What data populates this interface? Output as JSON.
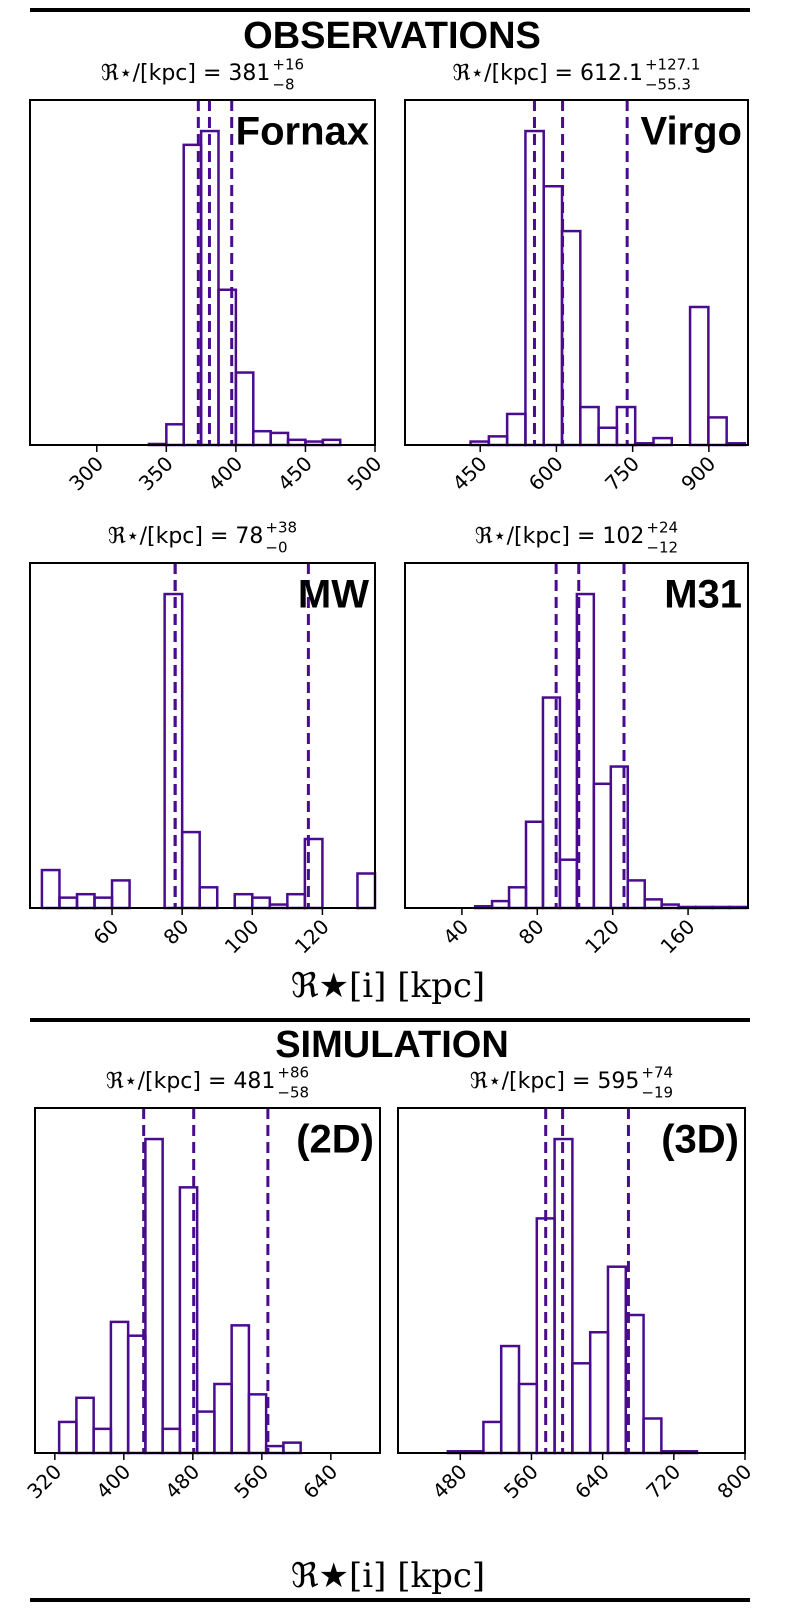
{
  "sections": [
    {
      "title": "OBSERVATIONS"
    },
    {
      "title": "SIMULATION"
    }
  ],
  "xlabel": "ℜ★[i]  [kpc]",
  "chart_data": [
    {
      "type": "histogram",
      "label": "Fornax",
      "annotation": {
        "prefix": "ℜ⋆/[kpc] = ",
        "median": "381",
        "plus": "+16",
        "minus": "−8"
      },
      "bins": [
        250,
        262.5,
        275,
        287.5,
        300,
        312.5,
        325,
        337.5,
        350,
        362.5,
        375,
        387.5,
        400,
        412.5,
        425,
        437.5,
        450,
        462.5,
        475,
        487.5,
        500
      ],
      "counts": [
        0,
        0,
        0,
        0,
        0,
        0,
        0,
        0.3,
        6,
        87,
        91,
        45,
        21,
        4,
        3.5,
        1.5,
        1,
        1.5,
        0,
        0
      ],
      "xlim": [
        252,
        500
      ],
      "xticks": [
        300,
        350,
        400,
        450,
        500
      ],
      "ylim": [
        0,
        100
      ],
      "vlines": [
        373,
        381,
        397
      ],
      "color": "#4a0c8f"
    },
    {
      "type": "histogram",
      "label": "Virgo",
      "annotation": {
        "prefix": "ℜ⋆/[kpc] = ",
        "median": "612.1",
        "plus": "+127.1",
        "minus": "−55.3"
      },
      "bins": [
        431,
        467,
        503,
        539,
        575,
        611,
        647,
        683,
        719,
        755,
        791,
        827,
        863,
        899,
        935,
        971
      ],
      "counts": [
        1,
        2.5,
        9,
        91,
        75,
        62,
        11,
        5,
        11,
        0.5,
        2,
        0,
        40,
        8,
        0.5
      ],
      "xlim": [
        302,
        977
      ],
      "xticks": [
        450,
        600,
        750,
        900
      ],
      "ylim": [
        0,
        100
      ],
      "vlines": [
        556.8,
        612.1,
        739.2
      ],
      "color": "#4a0c8f"
    },
    {
      "type": "histogram",
      "label": "MW",
      "annotation": {
        "prefix": "ℜ⋆/[kpc] = ",
        "median": "78",
        "plus": "+38",
        "minus": "−0"
      },
      "bins": [
        40,
        45,
        50,
        55,
        60,
        65,
        70,
        75,
        80,
        85,
        90,
        95,
        100,
        105,
        110,
        115,
        120,
        125,
        130,
        135
      ],
      "counts": [
        11,
        3,
        4,
        3,
        8,
        0,
        0,
        91,
        22,
        6,
        0,
        4,
        3,
        1,
        4,
        20,
        0,
        0,
        10
      ],
      "xlim": [
        36.6,
        135
      ],
      "xticks": [
        60,
        80,
        100,
        120
      ],
      "ylim": [
        0,
        100
      ],
      "vlines": [
        78,
        78,
        116
      ],
      "color": "#4a0c8f"
    },
    {
      "type": "histogram",
      "label": "M31",
      "annotation": {
        "prefix": "ℜ⋆/[kpc] = ",
        "median": "102",
        "plus": "+24",
        "minus": "−12"
      },
      "bins": [
        47,
        56,
        65,
        74,
        83,
        92,
        101,
        110,
        119,
        128,
        137,
        146,
        155,
        164,
        173,
        182,
        191
      ],
      "counts": [
        0.5,
        2,
        6,
        25,
        61,
        14,
        91,
        36,
        41,
        8,
        2.5,
        1,
        0.3,
        0.3,
        0.3,
        0.3
      ],
      "xlim": [
        9.8,
        191.8
      ],
      "xticks": [
        40,
        80,
        120,
        160
      ],
      "ylim": [
        0,
        100
      ],
      "vlines": [
        90,
        102,
        126
      ],
      "color": "#4a0c8f"
    },
    {
      "type": "histogram",
      "label": "(2D)",
      "annotation": {
        "prefix": "ℜ⋆/[kpc] = ",
        "median": "481",
        "plus": "+86",
        "minus": "−58"
      },
      "bins": [
        325,
        345,
        365,
        385,
        405,
        425,
        445,
        465,
        485,
        505,
        525,
        545,
        565,
        585,
        605
      ],
      "counts": [
        9,
        16,
        7,
        38,
        34,
        91,
        7,
        77,
        12,
        20,
        37,
        17,
        2,
        3
      ],
      "xlim": [
        297,
        697
      ],
      "xticks": [
        320,
        400,
        480,
        560,
        640
      ],
      "ylim": [
        0,
        100
      ],
      "vlines": [
        423,
        481,
        567
      ],
      "color": "#4a0c8f"
    },
    {
      "type": "histogram",
      "label": "(3D)",
      "annotation": {
        "prefix": "ℜ⋆/[kpc] = ",
        "median": "595",
        "plus": "+74",
        "minus": "−19"
      },
      "bins": [
        466,
        486,
        506,
        526,
        546,
        566,
        586,
        606,
        626,
        646,
        666,
        686,
        706,
        726,
        746
      ],
      "counts": [
        0.5,
        0.5,
        9,
        31,
        20,
        68,
        91,
        26,
        35,
        54,
        40,
        10,
        0.5,
        0.5
      ],
      "xlim": [
        410,
        800
      ],
      "xticks": [
        480,
        560,
        640,
        720,
        800
      ],
      "ylim": [
        0,
        100
      ],
      "vlines": [
        576,
        595,
        669
      ],
      "color": "#4a0c8f"
    }
  ]
}
